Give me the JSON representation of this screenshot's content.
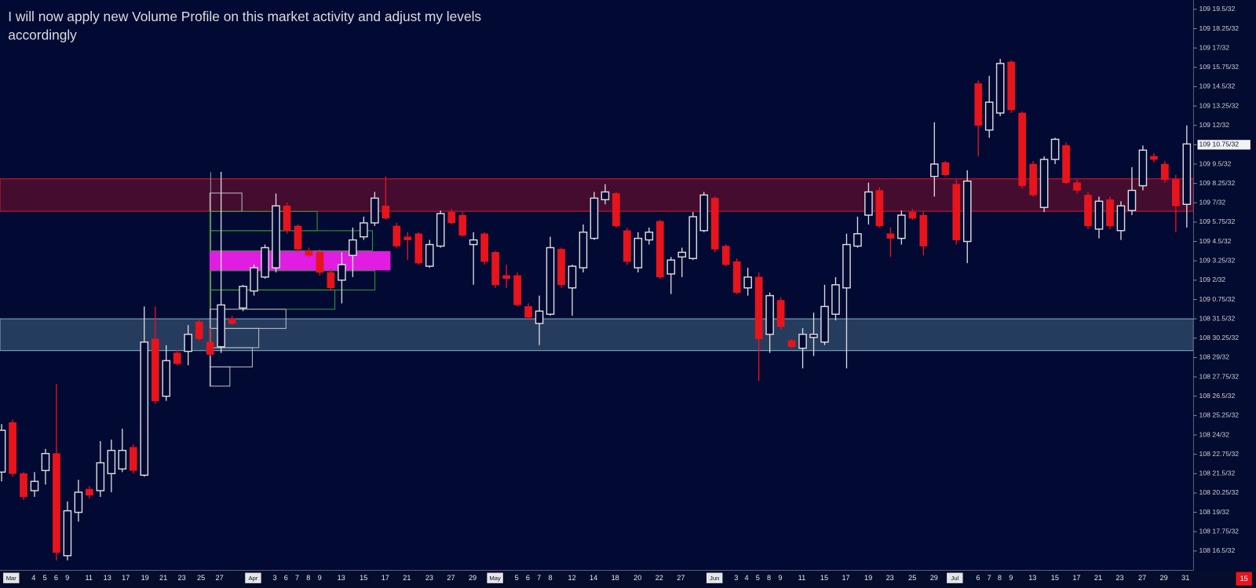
{
  "chart_data": {
    "type": "candlestick",
    "annotation": [
      "I will now apply new Volume Profile on this market activity and adjust my levels",
      "accordingly"
    ],
    "badge": "15",
    "up_color": "#dcdcdc",
    "down_color": "#e8141c",
    "ylim": [
      15.25,
      52.1
    ],
    "yticks": [
      {
        "value": 51.5,
        "label": "109 19.5/32"
      },
      {
        "value": 50.25,
        "label": "109 18.25/32"
      },
      {
        "value": 49,
        "label": "109 17/32"
      },
      {
        "value": 47.75,
        "label": "109 15.75/32"
      },
      {
        "value": 46.5,
        "label": "109 14.5/32"
      },
      {
        "value": 45.25,
        "label": "109 13.25/32"
      },
      {
        "value": 44,
        "label": "109 12/32"
      },
      {
        "value": 42.75,
        "label": "109 10.75/32"
      },
      {
        "value": 41.5,
        "label": "109 9.5/32"
      },
      {
        "value": 40.25,
        "label": "109 8.25/32"
      },
      {
        "value": 39,
        "label": "109 7/32"
      },
      {
        "value": 37.75,
        "label": "109 5.75/32"
      },
      {
        "value": 36.5,
        "label": "109 4.5/32"
      },
      {
        "value": 35.25,
        "label": "109 3.25/32"
      },
      {
        "value": 34,
        "label": "109 2/32"
      },
      {
        "value": 32.75,
        "label": "109 0.75/32"
      },
      {
        "value": 31.5,
        "label": "108 31.5/32"
      },
      {
        "value": 30.25,
        "label": "108 30.25/32"
      },
      {
        "value": 29,
        "label": "108 29/32"
      },
      {
        "value": 27.75,
        "label": "108 27.75/32"
      },
      {
        "value": 26.5,
        "label": "108 26.5/32"
      },
      {
        "value": 25.25,
        "label": "108 25.25/32"
      },
      {
        "value": 24,
        "label": "108 24/32"
      },
      {
        "value": 22.75,
        "label": "108 22.75/32"
      },
      {
        "value": 21.5,
        "label": "108 21.5/32"
      },
      {
        "value": 20.25,
        "label": "108 20.25/32"
      },
      {
        "value": 19,
        "label": "108 19/32"
      },
      {
        "value": 17.75,
        "label": "108 17.75/32"
      },
      {
        "value": 16.5,
        "label": "108 16.5/32"
      }
    ],
    "last_price": 42.75,
    "zones": [
      {
        "low": 38.45,
        "high": 40.55,
        "color": "#c0142a"
      },
      {
        "low": 29.45,
        "high": 31.5,
        "color": "#6a9ab0"
      }
    ],
    "x_labels": [
      "Mar",
      "4",
      "5",
      "6",
      "9",
      "11",
      "13",
      "17",
      "19",
      "21",
      "23",
      "25",
      "27",
      "Apr",
      "3",
      "6",
      "7",
      "8",
      "9",
      "13",
      "15",
      "17",
      "21",
      "23",
      "27",
      "29",
      "May",
      "5",
      "6",
      "7",
      "8",
      "12",
      "14",
      "18",
      "20",
      "22",
      "27",
      "Jun",
      "3",
      "4",
      "5",
      "8",
      "9",
      "11",
      "15",
      "17",
      "19",
      "23",
      "25",
      "29",
      "Jul",
      "6",
      "7",
      "8",
      "9",
      "13",
      "15",
      "17",
      "21",
      "23",
      "27",
      "29",
      "31"
    ],
    "open": [
      21.6,
      24.8,
      21.5,
      20.4,
      21.7,
      22.8,
      16.2,
      19.0,
      20.5,
      20.4,
      21.5,
      21.8,
      23.2,
      21.4,
      30.2,
      26.5,
      29.3,
      29.4,
      31.3,
      30.0,
      29.7,
      31.5,
      32.2,
      33.3,
      34.2,
      34.8,
      38.8,
      37.5,
      35.9,
      35.8,
      34.5,
      34.0,
      35.6,
      36.8,
      37.7,
      38.8,
      37.5,
      36.8,
      37.0,
      34.9,
      36.2,
      38.4,
      38.2,
      36.3,
      37.0,
      35.8,
      34.3,
      34.3,
      32.3,
      31.2,
      31.8,
      36.0,
      33.5,
      34.8,
      36.7,
      39.2,
      39.6,
      37.2,
      34.8,
      36.6,
      37.8,
      34.4,
      35.5,
      35.4,
      37.2,
      39.3,
      36.2,
      35.2,
      33.5,
      34.2,
      30.5,
      32.7,
      30.1,
      29.6,
      30.3,
      30.0,
      31.8,
      33.5,
      36.2,
      38.2,
      39.8,
      37.0,
      36.7,
      38.4,
      38.2,
      40.7,
      41.6,
      40.2,
      36.5,
      46.7,
      43.7,
      44.8,
      48.1,
      44.8,
      41.5,
      38.7,
      41.8,
      42.7,
      40.3,
      39.5,
      37.3,
      39.2,
      37.2,
      38.5,
      40.1,
      42.0,
      41.5,
      40.5,
      38.9
    ],
    "high": [
      24.7,
      25.0,
      21.6,
      21.6,
      23.1,
      27.3,
      19.7,
      21.1,
      20.7,
      23.6,
      23.7,
      24.4,
      23.4,
      32.3,
      32.3,
      29.8,
      29.5,
      31.1,
      31.5,
      30.9,
      41.0,
      31.7,
      33.7,
      35.0,
      36.3,
      39.6,
      39.0,
      37.6,
      36.1,
      36.0,
      34.7,
      35.8,
      37.4,
      38.1,
      39.7,
      40.7,
      37.7,
      37.1,
      37.1,
      36.6,
      38.5,
      38.6,
      38.4,
      37.1,
      37.1,
      35.9,
      35.0,
      34.5,
      32.5,
      33.0,
      36.8,
      36.1,
      35.0,
      37.6,
      39.7,
      40.2,
      39.7,
      37.4,
      37.1,
      37.4,
      37.9,
      35.5,
      36.1,
      38.4,
      39.7,
      39.4,
      36.3,
      35.4,
      34.8,
      34.5,
      33.2,
      32.9,
      30.2,
      30.9,
      31.9,
      33.7,
      34.2,
      37.0,
      38.1,
      40.3,
      40.0,
      37.4,
      38.5,
      38.6,
      38.4,
      44.2,
      41.7,
      40.5,
      41.1,
      46.9,
      47.2,
      48.3,
      48.2,
      44.9,
      41.7,
      42.0,
      43.2,
      42.9,
      40.5,
      39.7,
      39.4,
      39.4,
      39.1,
      41.3,
      42.7,
      42.2,
      41.7,
      40.8,
      44.0
    ],
    "low": [
      21.0,
      21.3,
      19.8,
      20.0,
      20.8,
      15.9,
      15.9,
      18.4,
      19.9,
      20.0,
      20.3,
      21.6,
      21.5,
      21.3,
      26.0,
      26.2,
      28.5,
      28.5,
      30.1,
      29.1,
      29.3,
      31.1,
      32.0,
      33.0,
      34.1,
      34.5,
      37.0,
      35.8,
      35.5,
      34.3,
      33.3,
      32.5,
      34.2,
      36.6,
      37.5,
      37.9,
      36.1,
      35.3,
      35.0,
      34.8,
      36.1,
      37.6,
      36.8,
      33.7,
      35.0,
      33.5,
      33.5,
      32.3,
      31.4,
      29.8,
      31.7,
      33.5,
      31.7,
      34.5,
      36.6,
      38.9,
      37.4,
      35.0,
      34.5,
      36.3,
      34.1,
      33.1,
      34.2,
      35.3,
      37.1,
      35.8,
      34.9,
      33.1,
      33.0,
      27.5,
      29.3,
      30.8,
      29.6,
      28.3,
      29.1,
      29.8,
      31.4,
      28.3,
      36.1,
      37.6,
      37.4,
      35.5,
      36.3,
      37.9,
      35.6,
      39.4,
      40.7,
      36.3,
      35.1,
      42.0,
      43.2,
      44.6,
      44.8,
      39.9,
      39.4,
      38.4,
      41.5,
      40.2,
      39.6,
      37.3,
      36.7,
      37.3,
      36.6,
      38.2,
      39.8,
      41.6,
      40.3,
      37.1,
      37.4
    ],
    "close": [
      24.3,
      21.5,
      20.0,
      21.0,
      22.8,
      16.4,
      19.1,
      20.3,
      20.1,
      22.2,
      23.0,
      23.0,
      21.7,
      30.0,
      26.2,
      28.8,
      28.6,
      30.5,
      30.2,
      29.2,
      32.4,
      31.2,
      33.6,
      34.8,
      36.1,
      38.8,
      37.2,
      36.0,
      35.6,
      34.5,
      33.5,
      35.0,
      36.6,
      37.7,
      39.3,
      38.0,
      36.2,
      36.6,
      35.1,
      36.3,
      38.3,
      37.7,
      36.9,
      36.6,
      35.2,
      33.7,
      34.1,
      32.4,
      31.6,
      32.0,
      36.1,
      33.7,
      34.9,
      37.1,
      39.3,
      39.7,
      37.5,
      35.2,
      36.7,
      37.1,
      34.2,
      35.3,
      35.8,
      38.1,
      39.5,
      36.0,
      35.0,
      33.2,
      34.2,
      30.2,
      33.0,
      31.0,
      29.7,
      30.5,
      30.5,
      32.3,
      33.7,
      36.3,
      37.0,
      39.7,
      37.5,
      36.7,
      38.2,
      38.0,
      36.2,
      41.5,
      40.8,
      36.6,
      40.4,
      44.0,
      45.5,
      48.0,
      45.0,
      40.1,
      39.5,
      41.8,
      43.1,
      40.3,
      39.8,
      37.5,
      39.1,
      37.5,
      38.8,
      39.8,
      42.4,
      41.8,
      40.5,
      38.8,
      42.8
    ]
  }
}
